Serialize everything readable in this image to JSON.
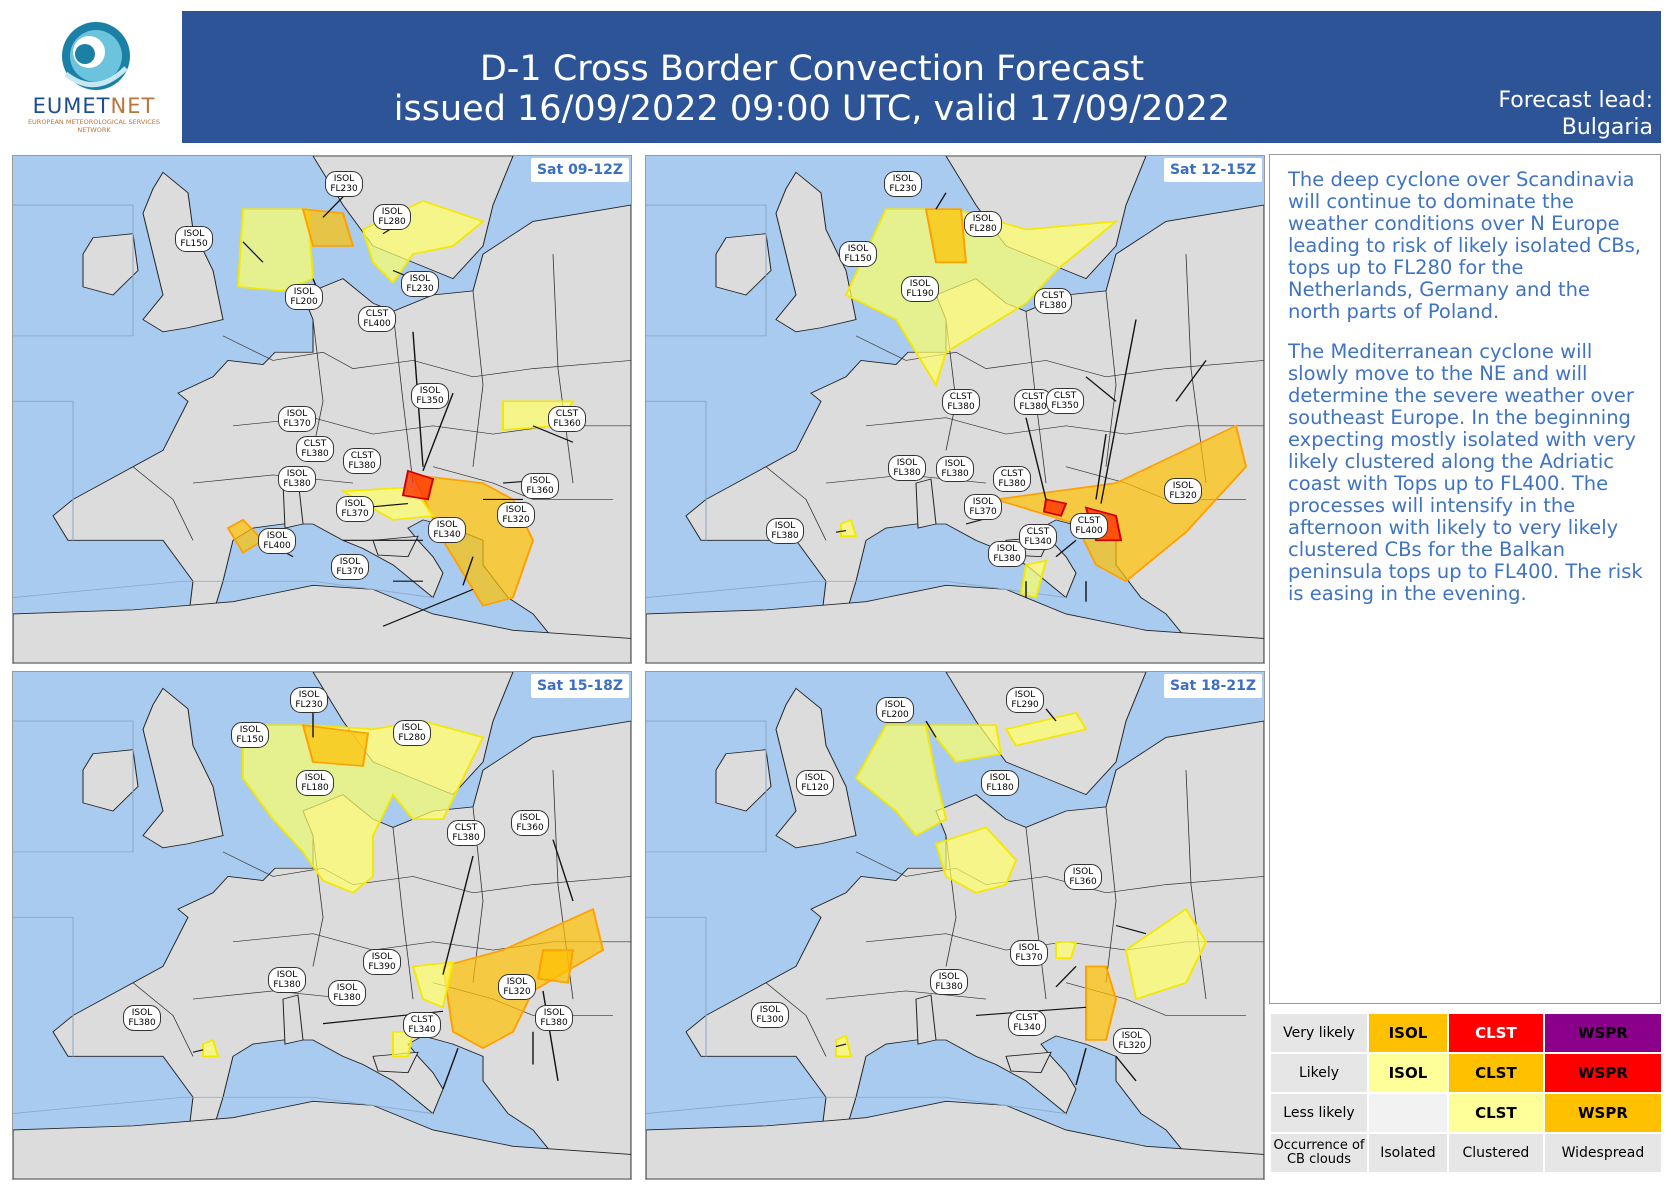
{
  "logo": {
    "brand_a": "EUMET",
    "brand_b": "NET",
    "subtitle": "EUROPEAN METEOROLOGICAL SERVICES NETWORK"
  },
  "header": {
    "title": "D-1 Cross Border Convection Forecast",
    "subtitle": "issued 16/09/2022 09:00 UTC, valid 17/09/2022",
    "lead_label": "Forecast lead:",
    "lead_value": "Bulgaria"
  },
  "colors": {
    "header_bg": "#2d5496",
    "sea": "#a8cbef",
    "land": "#dcdcdc",
    "isol_likely": "#ffff99",
    "clst_likely_isol_very": "#ffc000",
    "clst_very": "#ff0000"
  },
  "panels": [
    {
      "title": "Sat 09-12Z",
      "labels": [
        {
          "type": "ISOL",
          "fl": "FL230"
        },
        {
          "type": "ISOL",
          "fl": "FL280"
        },
        {
          "type": "ISOL",
          "fl": "FL150"
        },
        {
          "type": "ISOL",
          "fl": "FL230"
        },
        {
          "type": "ISOL",
          "fl": "FL200"
        },
        {
          "type": "CLST",
          "fl": "FL400"
        },
        {
          "type": "ISOL",
          "fl": "FL350"
        },
        {
          "type": "ISOL",
          "fl": "FL370"
        },
        {
          "type": "CLST",
          "fl": "FL360"
        },
        {
          "type": "CLST",
          "fl": "FL380"
        },
        {
          "type": "CLST",
          "fl": "FL380"
        },
        {
          "type": "ISOL",
          "fl": "FL380"
        },
        {
          "type": "ISOL",
          "fl": "FL360"
        },
        {
          "type": "ISOL",
          "fl": "FL370"
        },
        {
          "type": "ISOL",
          "fl": "FL320"
        },
        {
          "type": "ISOL",
          "fl": "FL400"
        },
        {
          "type": "ISOL",
          "fl": "FL340"
        },
        {
          "type": "ISOL",
          "fl": "FL370"
        }
      ]
    },
    {
      "title": "Sat 12-15Z",
      "labels": [
        {
          "type": "ISOL",
          "fl": "FL230"
        },
        {
          "type": "ISOL",
          "fl": "FL280"
        },
        {
          "type": "ISOL",
          "fl": "FL150"
        },
        {
          "type": "ISOL",
          "fl": "FL190"
        },
        {
          "type": "CLST",
          "fl": "FL380"
        },
        {
          "type": "CLST",
          "fl": "FL380"
        },
        {
          "type": "ISOL",
          "fl": "FL380"
        },
        {
          "type": "CLST",
          "fl": "FL380"
        },
        {
          "type": "CLST",
          "fl": "FL350"
        },
        {
          "type": "ISOL",
          "fl": "FL380"
        },
        {
          "type": "CLST",
          "fl": "FL380"
        },
        {
          "type": "ISOL",
          "fl": "FL320"
        },
        {
          "type": "ISOL",
          "fl": "FL370"
        },
        {
          "type": "CLST",
          "fl": "FL400"
        },
        {
          "type": "ISOL",
          "fl": "FL380"
        },
        {
          "type": "CLST",
          "fl": "FL340"
        },
        {
          "type": "ISOL",
          "fl": "FL380"
        }
      ]
    },
    {
      "title": "Sat 15-18Z",
      "labels": [
        {
          "type": "ISOL",
          "fl": "FL230"
        },
        {
          "type": "ISOL",
          "fl": "FL280"
        },
        {
          "type": "ISOL",
          "fl": "FL150"
        },
        {
          "type": "ISOL",
          "fl": "FL180"
        },
        {
          "type": "CLST",
          "fl": "FL380"
        },
        {
          "type": "ISOL",
          "fl": "FL360"
        },
        {
          "type": "ISOL",
          "fl": "FL390"
        },
        {
          "type": "ISOL",
          "fl": "FL380"
        },
        {
          "type": "ISOL",
          "fl": "FL380"
        },
        {
          "type": "ISOL",
          "fl": "FL320"
        },
        {
          "type": "CLST",
          "fl": "FL340"
        },
        {
          "type": "ISOL",
          "fl": "FL380"
        },
        {
          "type": "ISOL",
          "fl": "FL380"
        }
      ]
    },
    {
      "title": "Sat 18-21Z",
      "labels": [
        {
          "type": "ISOL",
          "fl": "FL200"
        },
        {
          "type": "ISOL",
          "fl": "FL290"
        },
        {
          "type": "ISOL",
          "fl": "FL120"
        },
        {
          "type": "ISOL",
          "fl": "FL180"
        },
        {
          "type": "ISOL",
          "fl": "FL360"
        },
        {
          "type": "ISOL",
          "fl": "FL370"
        },
        {
          "type": "ISOL",
          "fl": "FL380"
        },
        {
          "type": "ISOL",
          "fl": "FL300"
        },
        {
          "type": "CLST",
          "fl": "FL340"
        },
        {
          "type": "ISOL",
          "fl": "FL320"
        }
      ]
    }
  ],
  "description": [
    "The deep cyclone over Scandinavia will continue to dominate the weather conditions over N Europe leading to risk of likely isolated CBs, tops up to FL280 for the Netherlands, Germany and the north parts of Poland.",
    "The Mediterranean cyclone will slowly move to the NE and will determine the severe weather over southeast Europe. In the beginning expecting mostly isolated with very likely clustered along the Adriatic coast with Tops up to FL400. The processes will intensify in the afternoon with likely to very likely clustered CBs for the Balkan peninsula tops up to FL400. The risk is easing in the evening."
  ],
  "legend": {
    "rows": [
      {
        "label": "Very likely",
        "cells": [
          {
            "text": "ISOL",
            "bg": "#ffc000",
            "fg": "#000000"
          },
          {
            "text": "CLST",
            "bg": "#ff0000",
            "fg": "#ffffff"
          },
          {
            "text": "WSPR",
            "bg": "#8b008b",
            "fg": "#000000"
          }
        ]
      },
      {
        "label": "Likely",
        "cells": [
          {
            "text": "ISOL",
            "bg": "#ffff99",
            "fg": "#000000"
          },
          {
            "text": "CLST",
            "bg": "#ffc000",
            "fg": "#000000"
          },
          {
            "text": "WSPR",
            "bg": "#ff0000",
            "fg": "#000000"
          }
        ]
      },
      {
        "label": "Less likely",
        "cells": [
          {
            "text": "",
            "bg": "#f2f2f2",
            "fg": "#000000"
          },
          {
            "text": "CLST",
            "bg": "#ffff99",
            "fg": "#000000"
          },
          {
            "text": "WSPR",
            "bg": "#ffc000",
            "fg": "#000000"
          }
        ]
      }
    ],
    "footer_label": "Occurrence of CB clouds",
    "columns": [
      "Isolated",
      "Clustered",
      "Widespread"
    ]
  }
}
